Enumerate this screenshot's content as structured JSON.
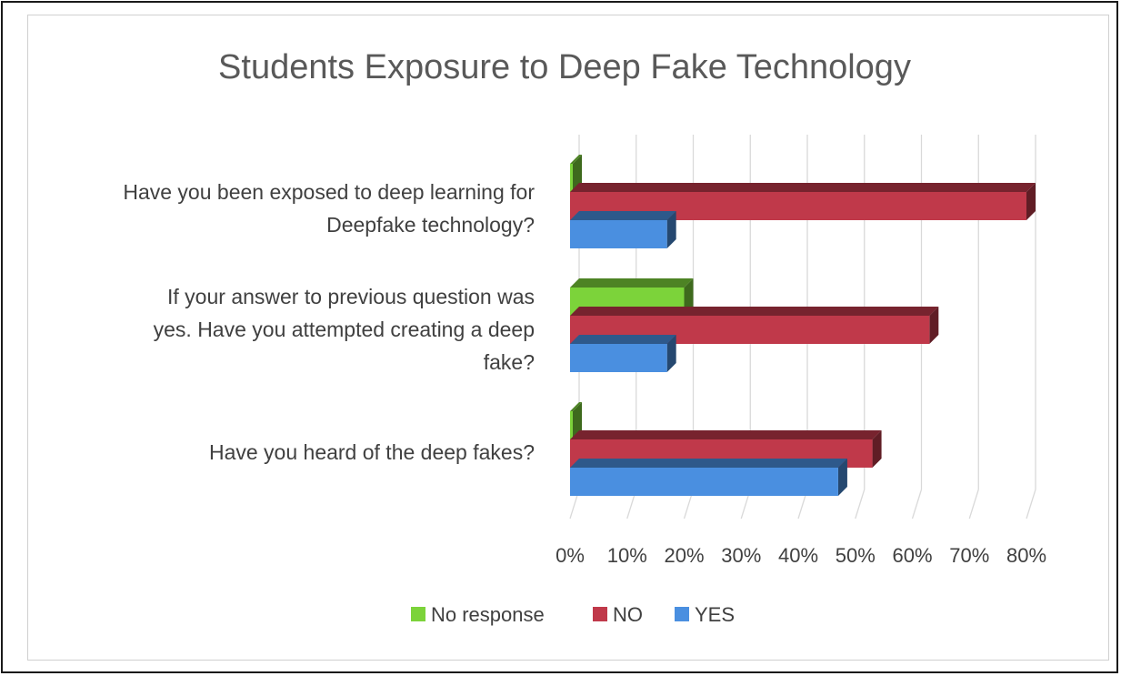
{
  "chart_data": {
    "type": "bar",
    "orientation": "horizontal",
    "title": "Students Exposure to Deep Fake Technology",
    "categories": [
      [
        "Have you been exposed to deep learning for",
        "Deepfake technology?"
      ],
      [
        "If your answer to previous question was",
        "yes. Have you attempted creating a deep",
        "fake?"
      ],
      [
        "Have you heard of the deep fakes?"
      ]
    ],
    "series": [
      {
        "name": "No response",
        "color": "#7cd33a",
        "values": [
          0,
          20,
          0
        ]
      },
      {
        "name": "NO",
        "color": "#c0394a",
        "values": [
          80,
          63,
          53
        ]
      },
      {
        "name": "YES",
        "color": "#4a8fe0",
        "values": [
          17,
          17,
          47
        ]
      }
    ],
    "xlim": [
      0,
      80
    ],
    "x_ticks": [
      "0%",
      "10%",
      "20%",
      "30%",
      "40%",
      "50%",
      "60%",
      "70%",
      "80%"
    ],
    "grid": true,
    "legend_position": "bottom"
  }
}
